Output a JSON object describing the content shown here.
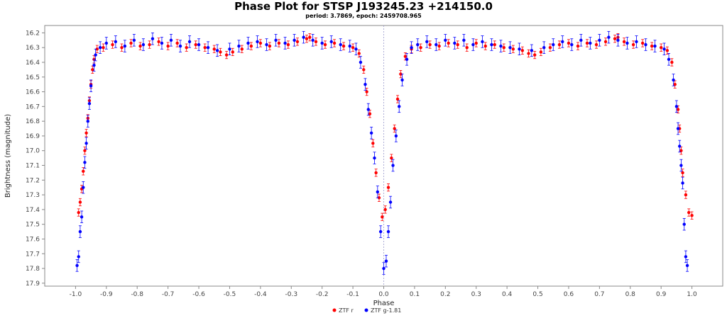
{
  "chart_data": {
    "type": "scatter",
    "title": "Phase Plot for STSP J193245.23 +214150.0",
    "subtitle": "period: 3.7869, epoch: 2459708.965",
    "xlabel": "Phase",
    "ylabel": "Brightness (magnitude)",
    "xlim": [
      -1.1,
      1.1
    ],
    "ylim": [
      16.15,
      17.92
    ],
    "y_inverted": true,
    "grid": false,
    "legend_position": "bottom-center",
    "xticks": [
      -1.0,
      -0.9,
      -0.8,
      -0.7,
      -0.6,
      -0.5,
      -0.4,
      -0.3,
      -0.2,
      -0.1,
      0.0,
      0.1,
      0.2,
      0.3,
      0.4,
      0.5,
      0.6,
      0.7,
      0.8,
      0.9,
      1.0
    ],
    "xtick_labels": [
      "-1.0",
      "-0.9",
      "-0.8",
      "-0.7",
      "-0.6",
      "-0.5",
      "-0.4",
      "-0.3",
      "-0.2",
      "-0.1",
      "0.0",
      "0.1",
      "0.2",
      "0.3",
      "0.4",
      "0.5",
      "0.6",
      "0.7",
      "0.8",
      "0.9",
      "1.0"
    ],
    "yticks": [
      16.2,
      16.3,
      16.4,
      16.5,
      16.6,
      16.7,
      16.8,
      16.9,
      17.0,
      17.1,
      17.2,
      17.3,
      17.4,
      17.5,
      17.6,
      17.7,
      17.8,
      17.9
    ],
    "ytick_labels": [
      "16.2",
      "16.3",
      "16.4",
      "16.5",
      "16.6",
      "16.7",
      "16.8",
      "16.9",
      "17.0",
      "17.1",
      "17.2",
      "17.3",
      "17.4",
      "17.5",
      "17.6",
      "17.7",
      "17.8",
      "17.9"
    ],
    "series": [
      {
        "name": "ZTF r",
        "color": "#ff0000",
        "error": 0.025,
        "points": [
          [
            -0.99,
            17.42
          ],
          [
            -0.985,
            17.35
          ],
          [
            -0.98,
            17.26
          ],
          [
            -0.975,
            17.14
          ],
          [
            -0.97,
            17.0
          ],
          [
            -0.965,
            16.88
          ],
          [
            -0.96,
            16.78
          ],
          [
            -0.955,
            16.66
          ],
          [
            -0.95,
            16.55
          ],
          [
            -0.945,
            16.45
          ],
          [
            -0.94,
            16.38
          ],
          [
            -0.93,
            16.31
          ],
          [
            -0.91,
            16.3
          ],
          [
            -0.88,
            16.28
          ],
          [
            -0.85,
            16.3
          ],
          [
            -0.82,
            16.27
          ],
          [
            -0.79,
            16.29
          ],
          [
            -0.76,
            16.28
          ],
          [
            -0.73,
            16.26
          ],
          [
            -0.7,
            16.29
          ],
          [
            -0.67,
            16.27
          ],
          [
            -0.64,
            16.3
          ],
          [
            -0.61,
            16.28
          ],
          [
            -0.58,
            16.3
          ],
          [
            -0.55,
            16.31
          ],
          [
            -0.53,
            16.33
          ],
          [
            -0.51,
            16.35
          ],
          [
            -0.49,
            16.33
          ],
          [
            -0.46,
            16.31
          ],
          [
            -0.43,
            16.29
          ],
          [
            -0.4,
            16.27
          ],
          [
            -0.37,
            16.29
          ],
          [
            -0.34,
            16.27
          ],
          [
            -0.31,
            16.28
          ],
          [
            -0.28,
            16.26
          ],
          [
            -0.25,
            16.24
          ],
          [
            -0.24,
            16.23
          ],
          [
            -0.22,
            16.26
          ],
          [
            -0.19,
            16.28
          ],
          [
            -0.16,
            16.27
          ],
          [
            -0.13,
            16.29
          ],
          [
            -0.1,
            16.3
          ],
          [
            -0.08,
            16.34
          ],
          [
            -0.065,
            16.45
          ],
          [
            -0.055,
            16.6
          ],
          [
            -0.045,
            16.75
          ],
          [
            -0.035,
            16.95
          ],
          [
            -0.025,
            17.15
          ],
          [
            -0.015,
            17.32
          ],
          [
            -0.005,
            17.45
          ],
          [
            0.005,
            17.4
          ],
          [
            0.015,
            17.25
          ],
          [
            0.025,
            17.05
          ],
          [
            0.035,
            16.85
          ],
          [
            0.045,
            16.65
          ],
          [
            0.055,
            16.48
          ],
          [
            0.07,
            16.36
          ],
          [
            0.09,
            16.31
          ],
          [
            0.12,
            16.3
          ],
          [
            0.15,
            16.28
          ],
          [
            0.18,
            16.29
          ],
          [
            0.21,
            16.27
          ],
          [
            0.24,
            16.28
          ],
          [
            0.27,
            16.3
          ],
          [
            0.3,
            16.27
          ],
          [
            0.33,
            16.29
          ],
          [
            0.36,
            16.28
          ],
          [
            0.39,
            16.3
          ],
          [
            0.42,
            16.31
          ],
          [
            0.45,
            16.32
          ],
          [
            0.47,
            16.34
          ],
          [
            0.49,
            16.35
          ],
          [
            0.51,
            16.33
          ],
          [
            0.54,
            16.3
          ],
          [
            0.57,
            16.28
          ],
          [
            0.6,
            16.27
          ],
          [
            0.63,
            16.29
          ],
          [
            0.66,
            16.27
          ],
          [
            0.69,
            16.28
          ],
          [
            0.72,
            16.26
          ],
          [
            0.75,
            16.24
          ],
          [
            0.76,
            16.23
          ],
          [
            0.78,
            16.26
          ],
          [
            0.81,
            16.28
          ],
          [
            0.84,
            16.27
          ],
          [
            0.87,
            16.29
          ],
          [
            0.9,
            16.3
          ],
          [
            0.92,
            16.32
          ],
          [
            0.935,
            16.4
          ],
          [
            0.945,
            16.55
          ],
          [
            0.955,
            16.72
          ],
          [
            0.96,
            16.85
          ],
          [
            0.965,
            17.0
          ],
          [
            0.97,
            17.15
          ],
          [
            0.98,
            17.3
          ],
          [
            0.99,
            17.42
          ],
          [
            1.0,
            17.44
          ]
        ]
      },
      {
        "name": "ZTF g-1.81",
        "color": "#0000ff",
        "error": 0.04,
        "points": [
          [
            -0.995,
            17.78
          ],
          [
            -0.99,
            17.72
          ],
          [
            -0.985,
            17.55
          ],
          [
            -0.98,
            17.45
          ],
          [
            -0.975,
            17.25
          ],
          [
            -0.97,
            17.08
          ],
          [
            -0.965,
            16.95
          ],
          [
            -0.96,
            16.8
          ],
          [
            -0.955,
            16.68
          ],
          [
            -0.95,
            16.56
          ],
          [
            -0.94,
            16.42
          ],
          [
            -0.935,
            16.35
          ],
          [
            -0.92,
            16.3
          ],
          [
            -0.9,
            16.27
          ],
          [
            -0.87,
            16.26
          ],
          [
            -0.84,
            16.29
          ],
          [
            -0.81,
            16.25
          ],
          [
            -0.78,
            16.28
          ],
          [
            -0.75,
            16.24
          ],
          [
            -0.72,
            16.27
          ],
          [
            -0.69,
            16.25
          ],
          [
            -0.66,
            16.29
          ],
          [
            -0.63,
            16.26
          ],
          [
            -0.6,
            16.28
          ],
          [
            -0.57,
            16.3
          ],
          [
            -0.54,
            16.32
          ],
          [
            -0.5,
            16.31
          ],
          [
            -0.47,
            16.29
          ],
          [
            -0.44,
            16.27
          ],
          [
            -0.41,
            16.26
          ],
          [
            -0.38,
            16.28
          ],
          [
            -0.35,
            16.25
          ],
          [
            -0.32,
            16.27
          ],
          [
            -0.29,
            16.25
          ],
          [
            -0.26,
            16.23
          ],
          [
            -0.23,
            16.25
          ],
          [
            -0.2,
            16.27
          ],
          [
            -0.17,
            16.26
          ],
          [
            -0.14,
            16.28
          ],
          [
            -0.11,
            16.29
          ],
          [
            -0.09,
            16.31
          ],
          [
            -0.075,
            16.4
          ],
          [
            -0.06,
            16.55
          ],
          [
            -0.05,
            16.72
          ],
          [
            -0.04,
            16.88
          ],
          [
            -0.03,
            17.05
          ],
          [
            -0.02,
            17.28
          ],
          [
            -0.01,
            17.55
          ],
          [
            0.0,
            17.8
          ],
          [
            0.008,
            17.75
          ],
          [
            0.015,
            17.55
          ],
          [
            0.022,
            17.35
          ],
          [
            0.03,
            17.1
          ],
          [
            0.04,
            16.9
          ],
          [
            0.05,
            16.7
          ],
          [
            0.06,
            16.52
          ],
          [
            0.075,
            16.38
          ],
          [
            0.09,
            16.3
          ],
          [
            0.11,
            16.28
          ],
          [
            0.14,
            16.26
          ],
          [
            0.17,
            16.28
          ],
          [
            0.2,
            16.25
          ],
          [
            0.23,
            16.27
          ],
          [
            0.26,
            16.25
          ],
          [
            0.29,
            16.28
          ],
          [
            0.32,
            16.26
          ],
          [
            0.35,
            16.28
          ],
          [
            0.38,
            16.29
          ],
          [
            0.41,
            16.3
          ],
          [
            0.44,
            16.31
          ],
          [
            0.48,
            16.32
          ],
          [
            0.52,
            16.3
          ],
          [
            0.55,
            16.28
          ],
          [
            0.58,
            16.26
          ],
          [
            0.61,
            16.28
          ],
          [
            0.64,
            16.25
          ],
          [
            0.67,
            16.27
          ],
          [
            0.7,
            16.25
          ],
          [
            0.73,
            16.23
          ],
          [
            0.76,
            16.25
          ],
          [
            0.79,
            16.27
          ],
          [
            0.82,
            16.26
          ],
          [
            0.85,
            16.28
          ],
          [
            0.88,
            16.29
          ],
          [
            0.91,
            16.31
          ],
          [
            0.925,
            16.38
          ],
          [
            0.94,
            16.52
          ],
          [
            0.95,
            16.7
          ],
          [
            0.955,
            16.85
          ],
          [
            0.96,
            16.97
          ],
          [
            0.965,
            17.1
          ],
          [
            0.97,
            17.22
          ],
          [
            0.975,
            17.5
          ],
          [
            0.98,
            17.72
          ],
          [
            0.985,
            17.78
          ]
        ]
      }
    ]
  }
}
